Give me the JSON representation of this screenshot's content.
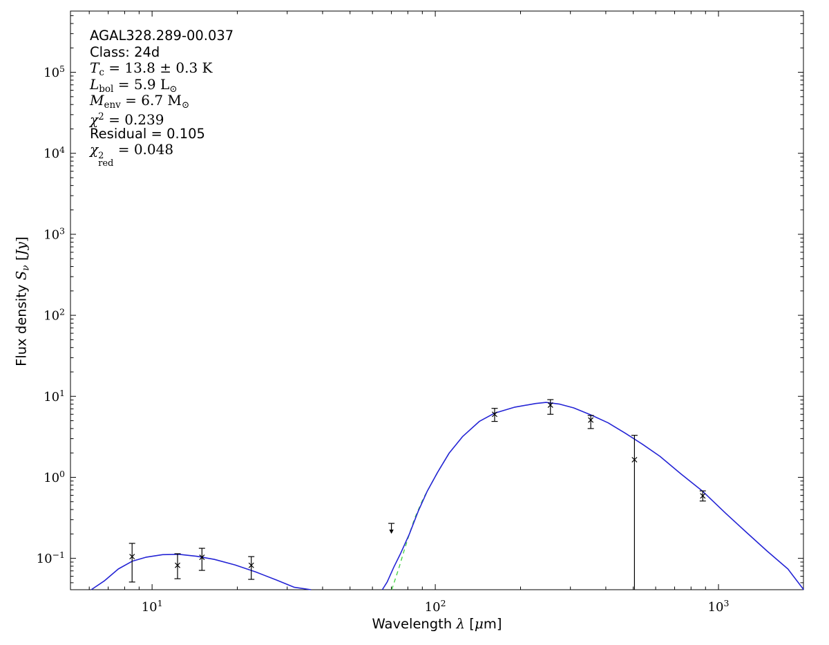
{
  "figure": {
    "background": "#ffffff",
    "frame_color": "#000000"
  },
  "source": {
    "name": "AGAL328.289-00.037",
    "class": "24d",
    "T_c": "13.8 ± 0.3 K",
    "L_bol": "5.9 L⊙",
    "M_env": "6.7 M⊙",
    "chi2": "0.239",
    "residual": "0.105",
    "chi2_red": "0.048"
  },
  "annotation": {
    "lines": [
      {
        "parts": [
          {
            "t": "AGAL328.289-00.037",
            "s": "plain"
          }
        ]
      },
      {
        "parts": [
          {
            "t": "Class: 24d",
            "s": "plain"
          }
        ]
      },
      {
        "parts": [
          {
            "t": "T",
            "s": "var"
          },
          {
            "t": "c",
            "s": "sub"
          },
          {
            "t": " = 13.8 ± 0.3 K",
            "s": "math"
          }
        ]
      },
      {
        "parts": [
          {
            "t": "L",
            "s": "var"
          },
          {
            "t": "bol",
            "s": "sub"
          },
          {
            "t": " = 5.9 L",
            "s": "math"
          },
          {
            "t": "⊙",
            "s": "sub"
          }
        ]
      },
      {
        "parts": [
          {
            "t": "M",
            "s": "var"
          },
          {
            "t": "env",
            "s": "sub"
          },
          {
            "t": " = 6.7 M",
            "s": "math"
          },
          {
            "t": "⊙",
            "s": "sub"
          }
        ]
      },
      {
        "parts": [
          {
            "t": "χ",
            "s": "var"
          },
          {
            "t": "2",
            "s": "sup"
          },
          {
            "t": " = 0.239",
            "s": "math"
          }
        ]
      },
      {
        "parts": [
          {
            "t": "Residual = 0.105",
            "s": "plain"
          }
        ]
      },
      {
        "parts": [
          {
            "t": "χ",
            "s": "var"
          },
          {
            "s": "stack",
            "sup": "2",
            "sub": "red"
          },
          {
            "t": " = 0.048",
            "s": "math"
          }
        ]
      }
    ]
  },
  "chart_data": {
    "type": "scatter",
    "title": "",
    "xlabel_parts": [
      {
        "t": "Wavelength ",
        "s": "plain"
      },
      {
        "t": "λ",
        "s": "var"
      },
      {
        "t": " [",
        "s": "plain"
      },
      {
        "t": "μ",
        "s": "var"
      },
      {
        "t": "m]",
        "s": "plain"
      }
    ],
    "ylabel_parts": [
      {
        "t": "Flux density ",
        "s": "plain"
      },
      {
        "t": "S",
        "s": "var"
      },
      {
        "t": "ν",
        "s": "subvar"
      },
      {
        "t": " [",
        "s": "math"
      },
      {
        "t": "Jy",
        "s": "var"
      },
      {
        "t": "]",
        "s": "math"
      }
    ],
    "xscale": "log",
    "yscale": "log",
    "xlim": [
      5.15,
      1995
    ],
    "ylim": [
      0.041,
      570000
    ],
    "x_tick_exponents": [
      1,
      2,
      3
    ],
    "y_tick_exponents": [
      -1,
      0,
      1,
      2,
      3,
      4,
      5
    ],
    "grid": false,
    "legend": null,
    "colors": {
      "model": "#2323d5",
      "secondary_model": "#4bd34b",
      "data": "#000000"
    },
    "points": [
      {
        "x": 8.5,
        "y": 0.105,
        "y_hi": 0.153,
        "y_lo": 0.051
      },
      {
        "x": 12.3,
        "y": 0.082,
        "y_hi": 0.114,
        "y_lo": 0.056
      },
      {
        "x": 15.0,
        "y": 0.103,
        "y_hi": 0.133,
        "y_lo": 0.071
      },
      {
        "x": 22.4,
        "y": 0.082,
        "y_hi": 0.105,
        "y_lo": 0.055
      },
      {
        "x": 162,
        "y": 6.0,
        "y_hi": 7.1,
        "y_lo": 4.9
      },
      {
        "x": 255,
        "y": 7.8,
        "y_hi": 9.1,
        "y_lo": 6.0
      },
      {
        "x": 354,
        "y": 5.1,
        "y_hi": 5.8,
        "y_lo": 4.0
      },
      {
        "x": 505,
        "y": 1.65,
        "y_hi": 3.3,
        "y_lo": null
      },
      {
        "x": 880,
        "y": 0.59,
        "y_hi": 0.68,
        "y_lo": 0.51
      }
    ],
    "upper_limits": [
      {
        "x": 70,
        "y": 0.27
      }
    ],
    "model_warm_curve": [
      [
        6.1,
        0.041
      ],
      [
        6.8,
        0.053
      ],
      [
        7.6,
        0.074
      ],
      [
        8.5,
        0.092
      ],
      [
        9.5,
        0.103
      ],
      [
        10.9,
        0.111
      ],
      [
        12.5,
        0.112
      ],
      [
        14.4,
        0.106
      ],
      [
        16.6,
        0.097
      ],
      [
        19.6,
        0.083
      ],
      [
        23.2,
        0.068
      ],
      [
        27.5,
        0.054
      ],
      [
        31.7,
        0.044
      ],
      [
        36.4,
        0.04
      ]
    ],
    "model_cold_curve": [
      [
        65,
        0.04
      ],
      [
        67.6,
        0.051
      ],
      [
        71.4,
        0.078
      ],
      [
        75.5,
        0.116
      ],
      [
        81,
        0.2
      ],
      [
        87,
        0.38
      ],
      [
        93.6,
        0.67
      ],
      [
        102,
        1.16
      ],
      [
        112,
        2.0
      ],
      [
        125,
        3.2
      ],
      [
        143,
        4.9
      ],
      [
        162,
        6.2
      ],
      [
        191,
        7.35
      ],
      [
        226,
        8.15
      ],
      [
        246,
        8.4
      ],
      [
        275,
        8.0
      ],
      [
        308,
        7.2
      ],
      [
        354,
        5.9
      ],
      [
        408,
        4.7
      ],
      [
        469,
        3.5
      ],
      [
        540,
        2.55
      ],
      [
        621,
        1.82
      ],
      [
        735,
        1.11
      ],
      [
        880,
        0.67
      ],
      [
        1060,
        0.36
      ],
      [
        1254,
        0.21
      ],
      [
        1485,
        0.123
      ],
      [
        1758,
        0.074
      ],
      [
        2000,
        0.04
      ]
    ],
    "secondary_model_curve": [
      [
        70.2,
        0.04
      ],
      [
        74.3,
        0.075
      ],
      [
        77.8,
        0.128
      ],
      [
        81,
        0.2
      ],
      [
        84.5,
        0.31
      ],
      [
        90.5,
        0.54
      ],
      [
        102,
        1.16
      ],
      [
        112,
        2.0
      ]
    ]
  }
}
